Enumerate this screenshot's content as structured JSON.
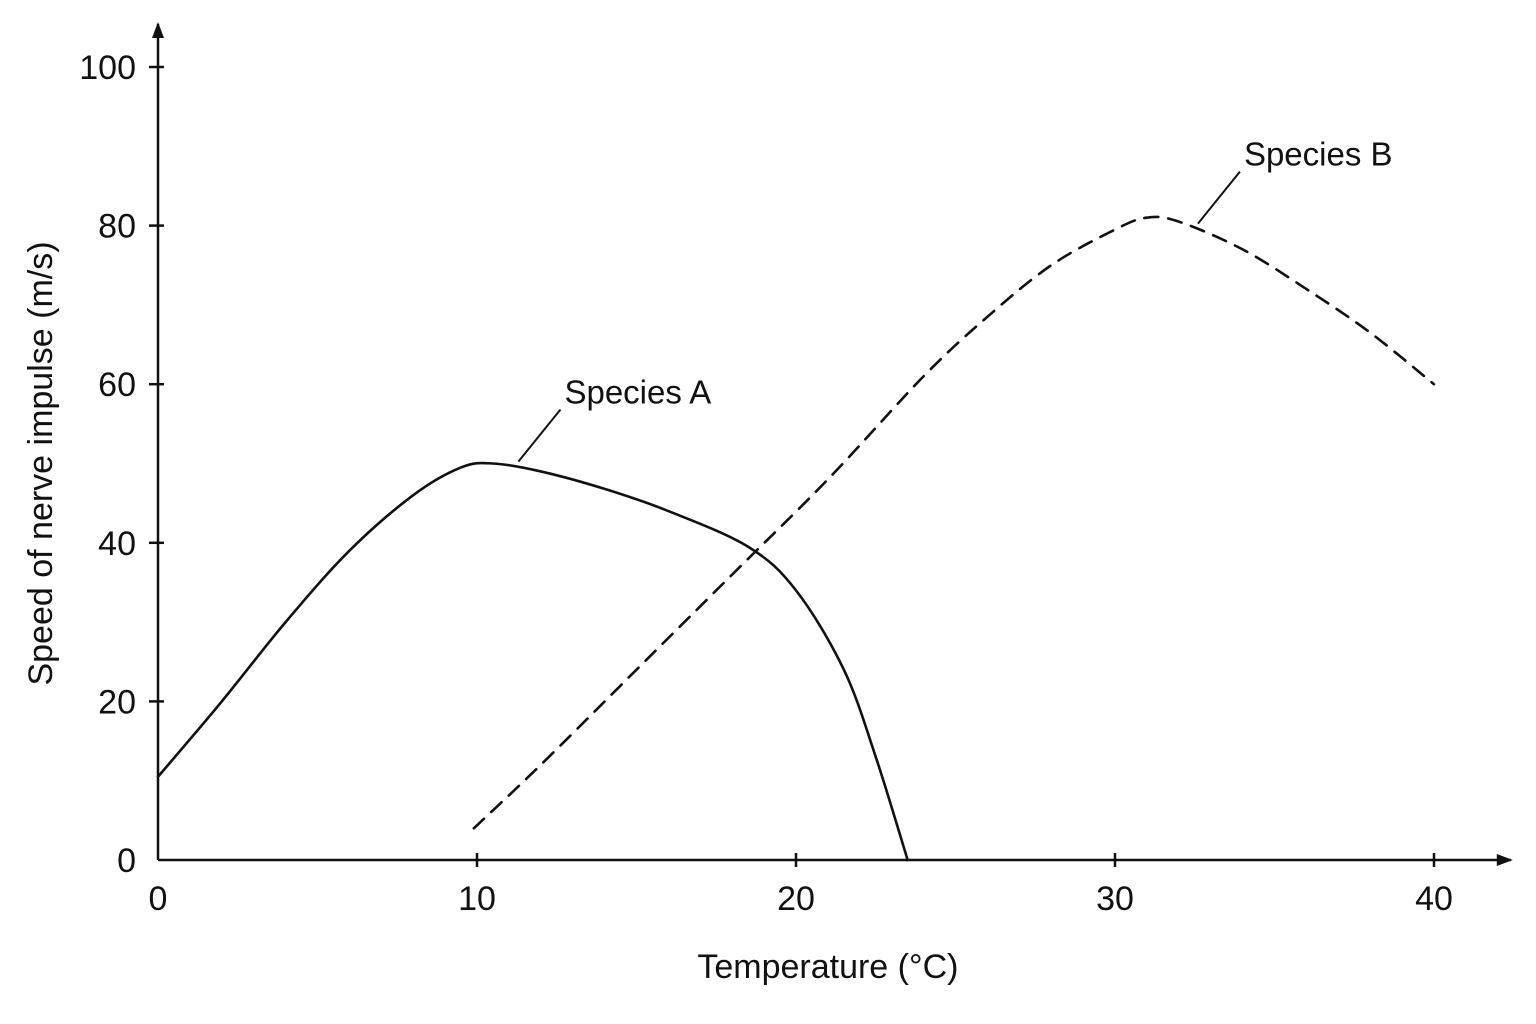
{
  "chart_data": {
    "type": "line",
    "xlabel": "Temperature (°C)",
    "ylabel": "Speed of nerve impulse (m/s)",
    "xlim": [
      0,
      42
    ],
    "ylim": [
      0,
      104
    ],
    "x_ticks": [
      0,
      10,
      20,
      30,
      40
    ],
    "y_ticks": [
      0,
      20,
      40,
      60,
      80,
      100
    ],
    "grid": false,
    "series": [
      {
        "name": "Species A",
        "style": "solid",
        "label_anchor": [
          11.3,
          50
        ],
        "points": [
          [
            0,
            10.5
          ],
          [
            2,
            20
          ],
          [
            4,
            30
          ],
          [
            6,
            39
          ],
          [
            8,
            46
          ],
          [
            9.5,
            49.5
          ],
          [
            10.5,
            50
          ],
          [
            12,
            49
          ],
          [
            14,
            46.8
          ],
          [
            16,
            44
          ],
          [
            18.5,
            39.5
          ],
          [
            20,
            34
          ],
          [
            21.5,
            24
          ],
          [
            22.5,
            13
          ],
          [
            23.5,
            0
          ]
        ]
      },
      {
        "name": "Species B",
        "style": "dashed",
        "label_anchor": [
          32.6,
          80
        ],
        "points": [
          [
            9.9,
            4
          ],
          [
            12,
            12
          ],
          [
            15,
            24
          ],
          [
            18,
            36
          ],
          [
            21,
            48
          ],
          [
            24,
            61
          ],
          [
            26,
            68.5
          ],
          [
            28,
            75
          ],
          [
            30,
            79.5
          ],
          [
            31,
            81
          ],
          [
            32,
            80.5
          ],
          [
            34,
            77
          ],
          [
            36,
            72
          ],
          [
            38,
            66.5
          ],
          [
            40,
            60
          ]
        ]
      }
    ]
  }
}
